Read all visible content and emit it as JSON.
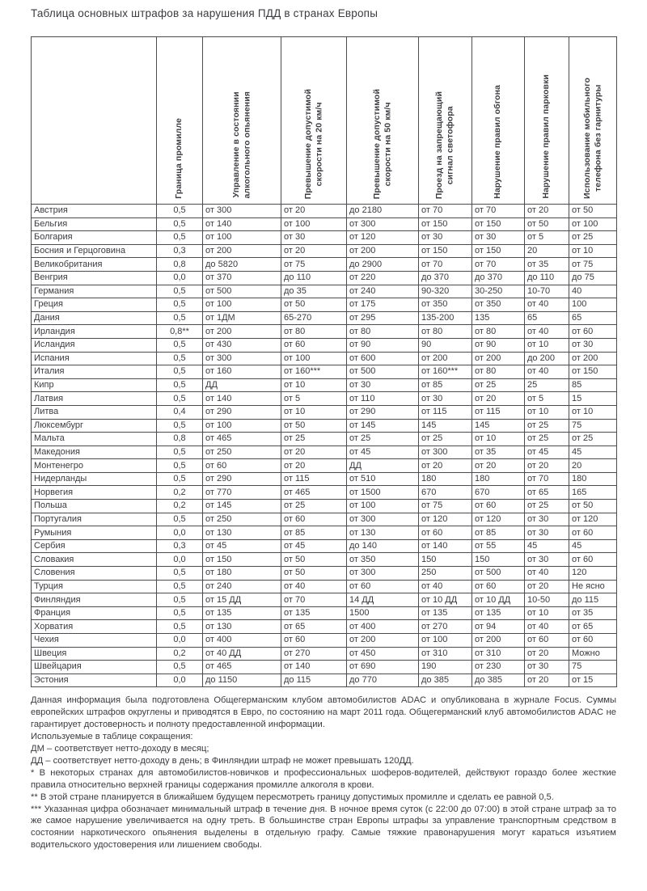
{
  "title": "Таблица основных штрафов за нарушения ПДД в странах Европы",
  "table": {
    "country_header": "",
    "columns": [
      {
        "label": "Граница промилле",
        "lines": [
          "Граница промилле"
        ]
      },
      {
        "label": "Управление в состоянии алкогольного опьянения",
        "lines": [
          "Управление в состоянии",
          "алкогольного опьянения"
        ]
      },
      {
        "label": "Превышение допустимой скорости на 20 км/ч",
        "lines": [
          "Превышение допустимой",
          "скорости на 20 км/ч"
        ]
      },
      {
        "label": "Превышение допустимой скорости на 50 км/ч",
        "lines": [
          "Превышение допустимой",
          "скорости на 50 км/ч"
        ]
      },
      {
        "label": "Проезд на запрещающий сигнал светофора",
        "lines": [
          "Проезд на запрещающий",
          "сигнал светофора"
        ]
      },
      {
        "label": "Нарушение правил обгона",
        "lines": [
          "Нарушение правил обгона"
        ]
      },
      {
        "label": "Нарушение правил парковки",
        "lines": [
          "Нарушение правил парковки"
        ]
      },
      {
        "label": "Использование мобильного телефона без гарнитуры",
        "lines": [
          "Использование мобильного",
          "телефона без гарнитуры"
        ]
      }
    ],
    "rows": [
      {
        "country": "Австрия",
        "values": [
          "0,5",
          "от 300",
          "от 20",
          "до 2180",
          "от 70",
          "от 70",
          "от 20",
          "от 50"
        ]
      },
      {
        "country": "Бельгия",
        "values": [
          "0,5",
          "от 140",
          "от 100",
          "от 300",
          "от 150",
          "от 150",
          "от 50",
          "от 100"
        ]
      },
      {
        "country": "Болгария",
        "values": [
          "0,5",
          "от 100",
          "от 30",
          "от 120",
          "от 30",
          "от 30",
          "от 5",
          "от 25"
        ]
      },
      {
        "country": "Босния и Герцоговина",
        "values": [
          "0,3",
          "от 200",
          "от 20",
          "от 200",
          "от 150",
          "от 150",
          "20",
          "от 10"
        ]
      },
      {
        "country": "Великобритания",
        "values": [
          "0,8",
          "до 5820",
          "от 75",
          "до 2900",
          "от 70",
          "от 70",
          "от 35",
          "от 75"
        ]
      },
      {
        "country": "Венгрия",
        "values": [
          "0,0",
          "от 370",
          "до 110",
          "от 220",
          "до 370",
          "до 370",
          "до 110",
          "до 75"
        ]
      },
      {
        "country": "Германия",
        "values": [
          "0,5",
          "от 500",
          "до 35",
          "от 240",
          "90-320",
          "30-250",
          "10-70",
          "40"
        ]
      },
      {
        "country": "Греция",
        "values": [
          "0,5",
          "от 100",
          "от 50",
          "от 175",
          "от 350",
          "от 350",
          "от 40",
          "100"
        ]
      },
      {
        "country": "Дания",
        "values": [
          "0,5",
          "от 1ДМ",
          "65-270",
          "от 295",
          "135-200",
          "135",
          "65",
          "65"
        ]
      },
      {
        "country": "Ирландия",
        "values": [
          "0,8**",
          "от 200",
          "от 80",
          "от 80",
          "от 80",
          "от 80",
          "от 40",
          "от 60"
        ]
      },
      {
        "country": "Исландия",
        "values": [
          "0,5",
          "от 430",
          "от 60",
          "от 90",
          "90",
          "от 90",
          "от 10",
          "от 30"
        ]
      },
      {
        "country": "Испания",
        "values": [
          "0,5",
          "от 300",
          "от 100",
          "от 600",
          "от 200",
          "от 200",
          "до 200",
          "от 200"
        ]
      },
      {
        "country": "Италия",
        "values": [
          "0,5",
          "от 160",
          "от 160***",
          "от 500",
          "от 160***",
          "от 80",
          "от 40",
          "от 150"
        ]
      },
      {
        "country": "Кипр",
        "values": [
          "0,5",
          "ДД",
          "от 10",
          "от 30",
          "от 85",
          "от 25",
          "25",
          "85"
        ]
      },
      {
        "country": "Латвия",
        "values": [
          "0,5",
          "от 140",
          "от 5",
          "от 110",
          "от 30",
          "от 20",
          "от 5",
          "15"
        ]
      },
      {
        "country": "Литва",
        "values": [
          "0,4",
          "от 290",
          "от 10",
          "от 290",
          "от 115",
          "от 115",
          "от 10",
          "от 10"
        ]
      },
      {
        "country": "Люксембург",
        "values": [
          "0,5",
          "от 100",
          "от 50",
          "от 145",
          "145",
          "145",
          "от 25",
          "75"
        ]
      },
      {
        "country": "Мальта",
        "values": [
          "0,8",
          "от 465",
          "от 25",
          "от 25",
          "от 25",
          "от 10",
          "от 25",
          "от 25"
        ]
      },
      {
        "country": "Македония",
        "values": [
          "0,5",
          "от 250",
          "от 20",
          "от 45",
          "от 300",
          "от 35",
          "от 45",
          "45"
        ]
      },
      {
        "country": "Монтенегро",
        "values": [
          "0,5",
          "от 60",
          "от 20",
          "ДД",
          "от 20",
          "от 20",
          "от 20",
          "20"
        ]
      },
      {
        "country": "Нидерланды",
        "values": [
          "0,5",
          "от 290",
          "от 115",
          "от 510",
          "180",
          "180",
          "от 70",
          "180"
        ]
      },
      {
        "country": "Норвегия",
        "values": [
          "0,2",
          "от 770",
          "от 465",
          "от 1500",
          "670",
          "670",
          "от 65",
          "165"
        ]
      },
      {
        "country": "Польша",
        "values": [
          "0,2",
          "от 145",
          "от 25",
          "от 100",
          "от 75",
          "от 60",
          "от 25",
          "от 50"
        ]
      },
      {
        "country": "Португалия",
        "values": [
          "0,5",
          "от 250",
          "от 60",
          "от 300",
          "от 120",
          "от 120",
          "от 30",
          "от 120"
        ]
      },
      {
        "country": "Румыния",
        "values": [
          "0,0",
          "от 130",
          "от 85",
          "от 130",
          "от 60",
          "от 85",
          "от 30",
          "от 60"
        ]
      },
      {
        "country": "Сербия",
        "values": [
          "0,3",
          "от 45",
          "от 45",
          "до 140",
          "от 140",
          "от 55",
          "45",
          "45"
        ]
      },
      {
        "country": "Словакия",
        "values": [
          "0,0",
          "от 150",
          "от 50",
          "от 350",
          "150",
          "150",
          "от 30",
          "от 60"
        ]
      },
      {
        "country": "Словения",
        "values": [
          "0,5",
          "от 180",
          "от 50",
          "от 300",
          "250",
          "от 500",
          "от 40",
          "120"
        ]
      },
      {
        "country": "Турция",
        "values": [
          "0,5",
          "от 240",
          "от 40",
          "от 60",
          "от 40",
          "от 60",
          "от 20",
          "Не ясно"
        ]
      },
      {
        "country": "Финляндия",
        "values": [
          "0,5",
          "от 15 ДД",
          "от 70",
          "14 ДД",
          "от 10 ДД",
          "от 10 ДД",
          "10-50",
          "до 115"
        ]
      },
      {
        "country": "Франция",
        "values": [
          "0,5",
          "от 135",
          "от 135",
          "1500",
          "от 135",
          "от 135",
          "от 10",
          "от 35"
        ]
      },
      {
        "country": "Хорватия",
        "values": [
          "0,5",
          "от 130",
          "от 65",
          "от 400",
          "от 270",
          "от 94",
          "от 40",
          "от 65"
        ]
      },
      {
        "country": "Чехия",
        "values": [
          "0,0",
          "от 400",
          "от 60",
          "от 200",
          "от 100",
          "от 200",
          "от 60",
          "от 60"
        ]
      },
      {
        "country": "Швеция",
        "values": [
          "0,2",
          "от 40 ДД",
          "от 270",
          "от 450",
          "от 310",
          "от 310",
          "от 20",
          "Можно"
        ]
      },
      {
        "country": "Швейцария",
        "values": [
          "0,5",
          "от 465",
          "от 140",
          "от 690",
          "190",
          "от 230",
          "от 30",
          "75"
        ]
      },
      {
        "country": "Эстония",
        "values": [
          "0,0",
          "до 1150",
          "до 115",
          "до 770",
          "до 385",
          "до 385",
          "от 20",
          "от 15"
        ]
      }
    ]
  },
  "notes": {
    "source": "Данная информация была подготовлена Общегерманским клубом автомобилистов ADAC и опубликована в журнале Focus. Суммы европейских штрафов округлены и приводятся в Евро, по состоянию на март 2011 года. Общегерманский клуб автомобилистов ADAC не гарантирует достоверность и полноту  предоставленной информации.",
    "abbr_intro": "Используемые в таблице сокращения:",
    "abbr_dm": "ДМ – соответствует нетто-доходу в месяц;",
    "abbr_dd": "ДД – соответствует нетто-доходу в день; в Финляндии штраф не может превышать 120ДД.",
    "footnote1": "* В некоторых странах для автомобилистов-новичков и профессиональных шоферов-водителей, действуют гораздо более жесткие правила относительно верхней границы содержания промилле алкоголя в крови.",
    "footnote2": "** В этой стране планируется в ближайшем будущем пересмотреть границу допустимых промилле и сделать ее равной 0,5.",
    "footnote3": "*** Указанная цифра обозначает минимальный штраф в течение дня. В ночное время суток (с 22:00 до 07:00) в этой стране штраф за то же самое нарушение увеличивается на одну треть. В большинстве стран Европы штрафы за управление транспортным средством в состоянии наркотического опьянения выделены в отдельную графу. Самые тяжкие правонарушения могут караться изъятием водительского удостоверения или лишением свободы."
  }
}
